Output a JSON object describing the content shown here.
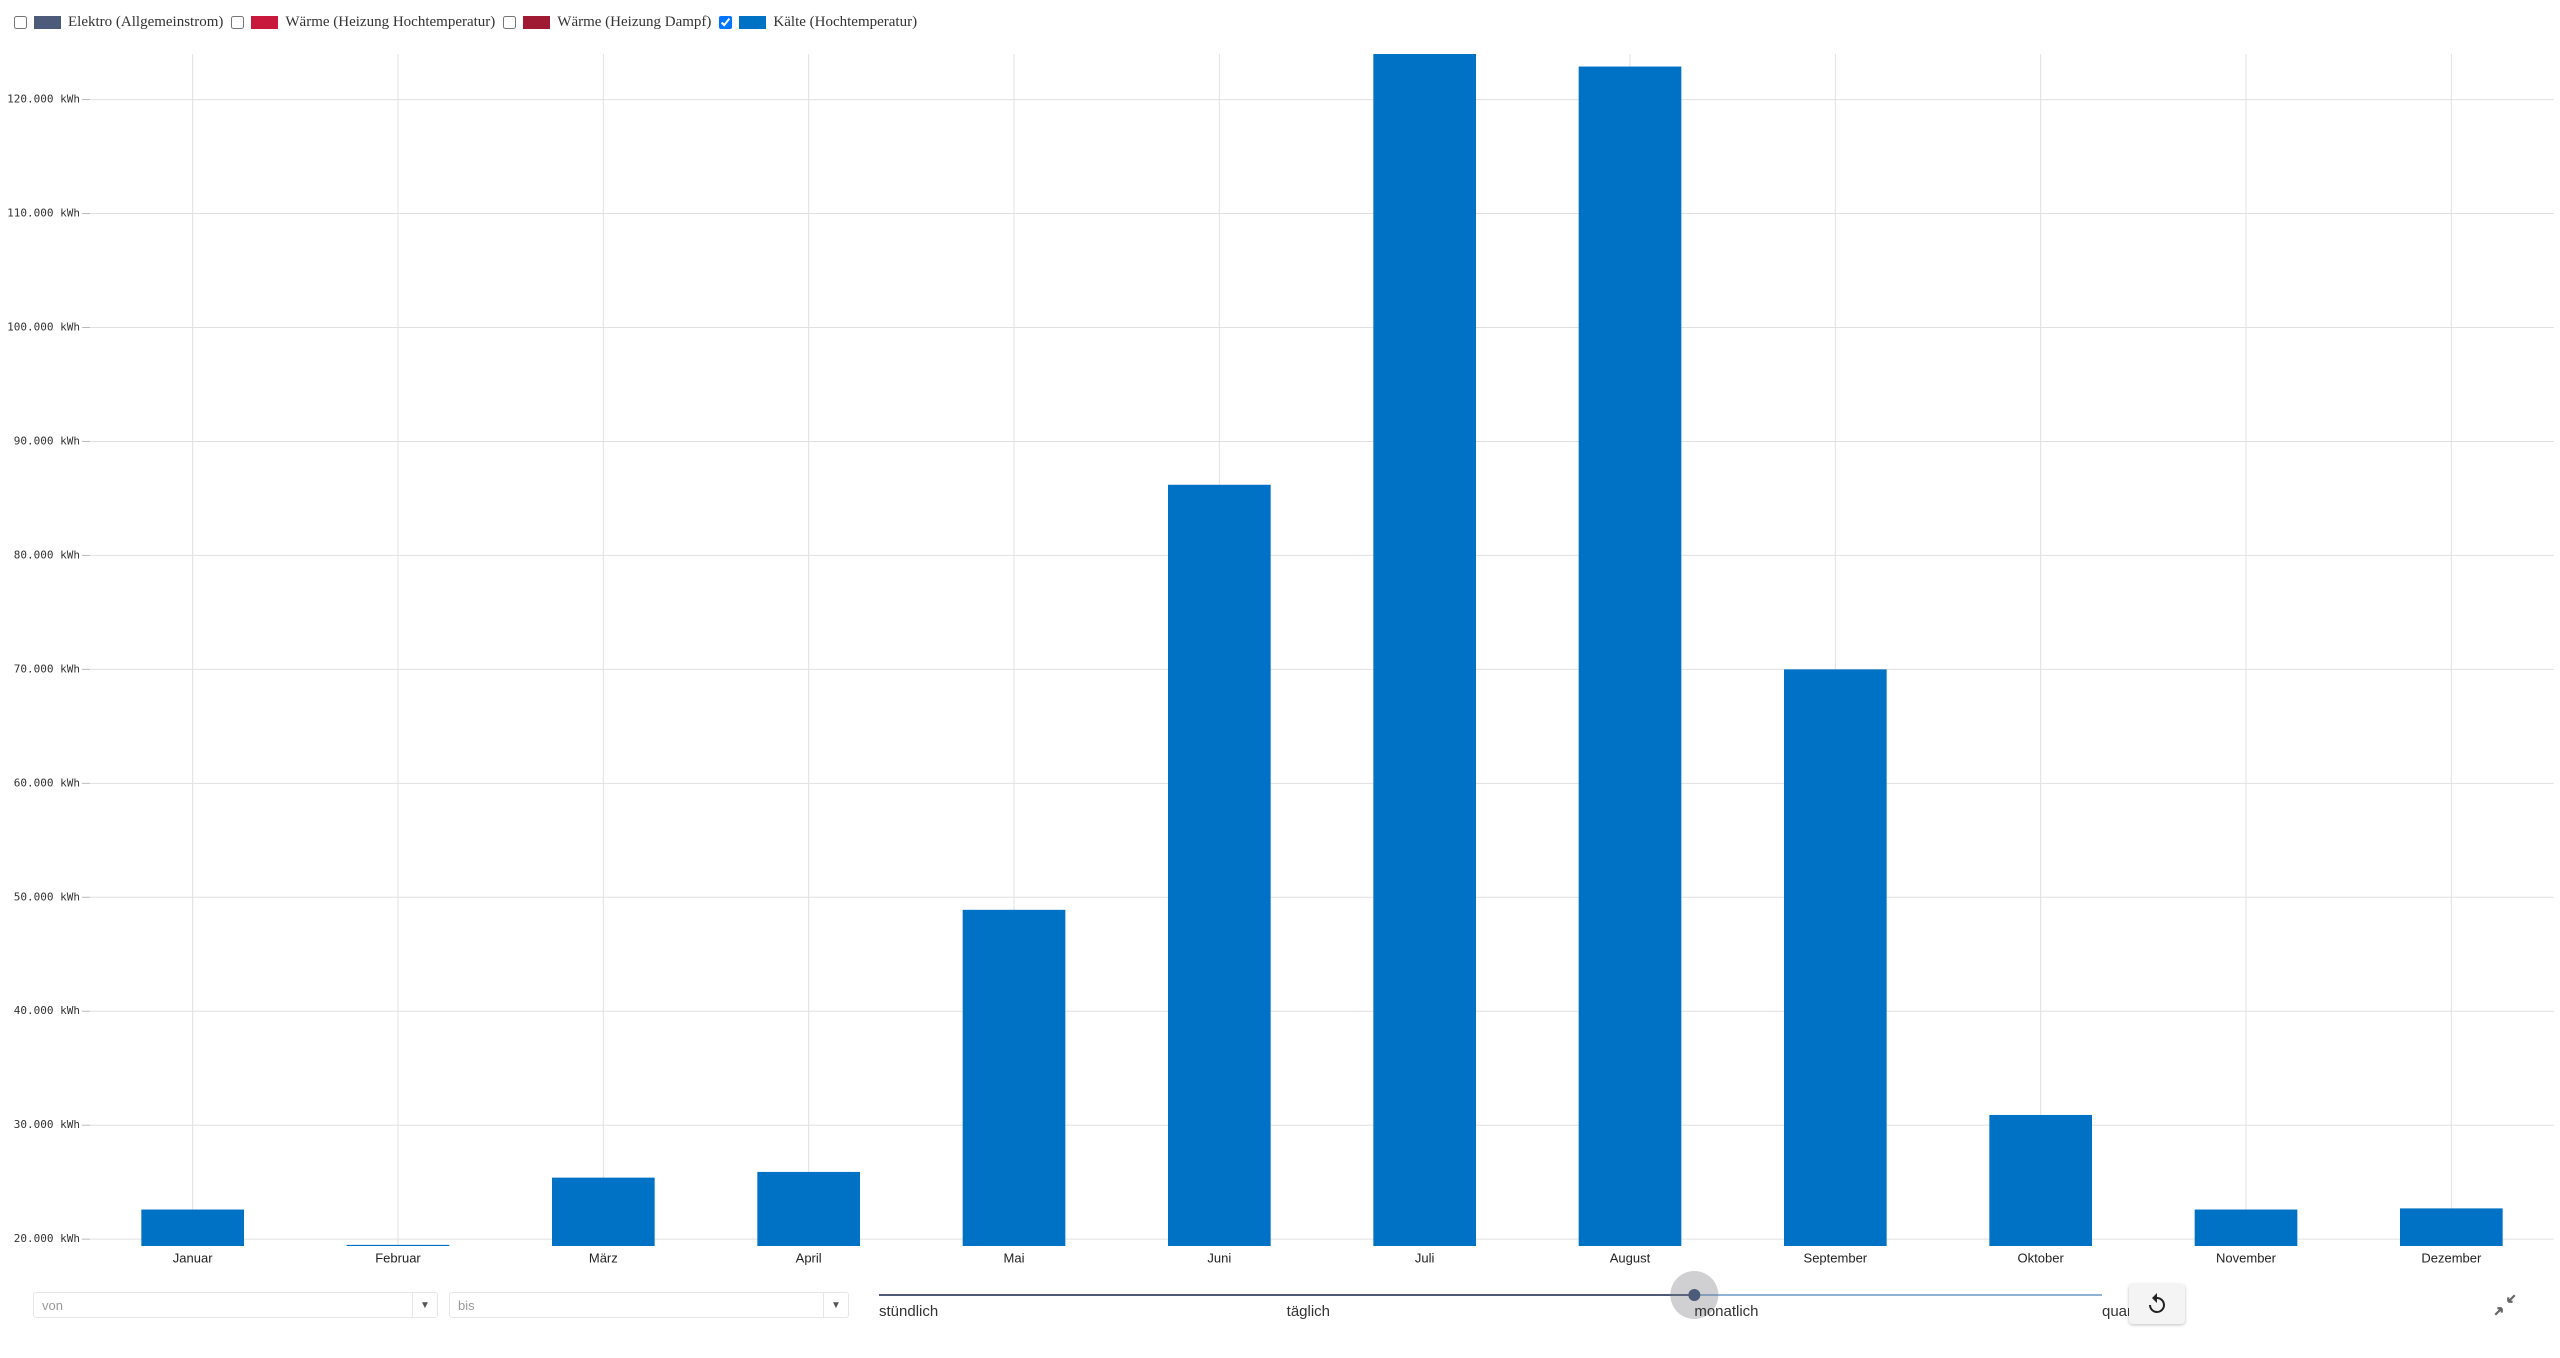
{
  "chart_data": {
    "type": "bar",
    "legend": [
      {
        "name": "Elektro (Allgemeinstrom)",
        "color": "#4b5b79",
        "checked": false
      },
      {
        "name": "Wärme (Heizung Hochtemperatur)",
        "color": "#c8193c",
        "checked": false
      },
      {
        "name": "Wärme (Heizung Dampf)",
        "color": "#a11a33",
        "checked": false
      },
      {
        "name": "Kälte (Hochtemperatur)",
        "color": "#0072c6",
        "checked": true
      }
    ],
    "categories": [
      "Januar",
      "Februar",
      "März",
      "April",
      "Mai",
      "Juni",
      "Juli",
      "August",
      "September",
      "Oktober",
      "November",
      "Dezember"
    ],
    "values": [
      22600,
      19500,
      25400,
      25900,
      48900,
      86200,
      124000,
      122900,
      70000,
      30900,
      22600,
      22700
    ],
    "color": "#0072c6",
    "ylim": [
      19400,
      124000
    ],
    "yticks": [
      {
        "value": 20000,
        "label": "20.000 kWh"
      },
      {
        "value": 30000,
        "label": "30.000 kWh"
      },
      {
        "value": 40000,
        "label": "40.000 kWh"
      },
      {
        "value": 50000,
        "label": "50.000 kWh"
      },
      {
        "value": 60000,
        "label": "60.000 kWh"
      },
      {
        "value": 70000,
        "label": "70.000 kWh"
      },
      {
        "value": 80000,
        "label": "80.000 kWh"
      },
      {
        "value": 90000,
        "label": "90.000 kWh"
      },
      {
        "value": 100000,
        "label": "100.000 kWh"
      },
      {
        "value": 110000,
        "label": "110.000 kWh"
      },
      {
        "value": 120000,
        "label": "120.000 kWh"
      }
    ],
    "grid": true
  },
  "controls": {
    "from": "von",
    "to": "bis",
    "intervals": [
      "stündlich",
      "täglich",
      "monatlich",
      "quar"
    ],
    "selected_interval": 2
  }
}
